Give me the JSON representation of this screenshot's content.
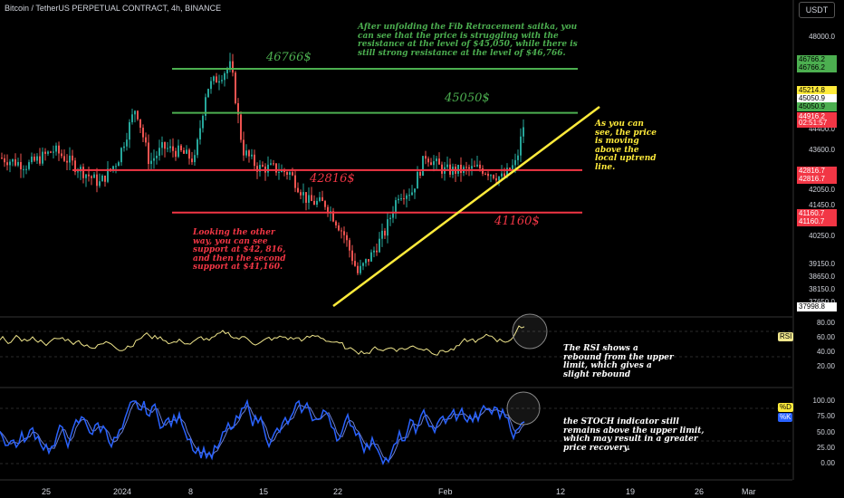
{
  "header": {
    "title": "Bitcoin / TetherUS PERPETUAL CONTRACT, 4h, BINANCE",
    "currency": "USDT"
  },
  "chart_data": {
    "type": "candlestick",
    "price_axis": {
      "ylim": [
        37650,
        49200
      ],
      "ticks": [
        "48000.0",
        "44400.0",
        "43600.0",
        "42050.0",
        "41450.0",
        "40250.0",
        "39150.0",
        "38650.0",
        "38150.0",
        "37650.0"
      ]
    },
    "x_labels": [
      "25",
      "2024",
      "8",
      "15",
      "22",
      "Feb",
      "12",
      "19",
      "26",
      "Mar"
    ],
    "levels": [
      {
        "label": "46766$",
        "price": 46766,
        "color": "#4caf50"
      },
      {
        "label": "45050$",
        "price": 45050,
        "color": "#4caf50"
      },
      {
        "label": "42816$",
        "price": 42816,
        "color": "#f23645"
      },
      {
        "label": "41160$",
        "price": 41160,
        "color": "#f23645"
      }
    ],
    "trendline": {
      "from": {
        "x": "Jan 23",
        "y": 38150
      },
      "to": {
        "x": "Feb 13",
        "y": 45070
      },
      "color": "#ffeb3b"
    },
    "price_tags": [
      {
        "text": "46766.2",
        "bg": "#4caf50",
        "fg": "#000"
      },
      {
        "text": "46766.2",
        "bg": "#4caf50",
        "fg": "#000"
      },
      {
        "text": "45214.8",
        "bg": "#ffeb3b",
        "fg": "#000"
      },
      {
        "text": "45050.9",
        "bg": "#ffffff",
        "fg": "#000"
      },
      {
        "text": "45050.9",
        "bg": "#4caf50",
        "fg": "#000"
      },
      {
        "text": "44916.2",
        "bg": "#f23645",
        "fg": "#fff"
      },
      {
        "text": "02:51:57",
        "bg": "#f23645",
        "fg": "#fff"
      },
      {
        "text": "42816.7",
        "bg": "#f23645",
        "fg": "#fff"
      },
      {
        "text": "42816.7",
        "bg": "#f23645",
        "fg": "#fff"
      },
      {
        "text": "41160.7",
        "bg": "#f23645",
        "fg": "#fff"
      },
      {
        "text": "41160.7",
        "bg": "#f23645",
        "fg": "#fff"
      },
      {
        "text": "37998.8",
        "bg": "#ffffff",
        "fg": "#000"
      }
    ],
    "rsi": {
      "label": "RSI",
      "ticks": [
        "80.00",
        "60.00",
        "40.00",
        "20.00"
      ]
    },
    "stoch": {
      "label_d": "%D",
      "label_k": "%K",
      "ticks": [
        "100.00",
        "75.00",
        "50.00",
        "25.00",
        "0.00"
      ]
    },
    "colors": {
      "up": "#26a69a",
      "down": "#ef5350",
      "rsi": "#f0e68c",
      "stoch_k": "#2962ff",
      "stoch_d": "#6a7fd6"
    }
  },
  "annotations": {
    "fib": "After unfolding the Fib Retracement saitka, you can see that the price is struggling with the resistance at the level of $45,050, while there is still strong resistance at the level of $46,766.",
    "uptrend": "As you can see, the price is moving above the local uptrend line.",
    "support": "Looking the other way, you can see support at $42, 816, and then the second support at $41,160.",
    "rsi": "The RSI shows a rebound from the upper limit, which gives a slight rebound",
    "stoch": "the STOCH indicator still remains above the upper limit, which may result in a greater price recovery."
  }
}
